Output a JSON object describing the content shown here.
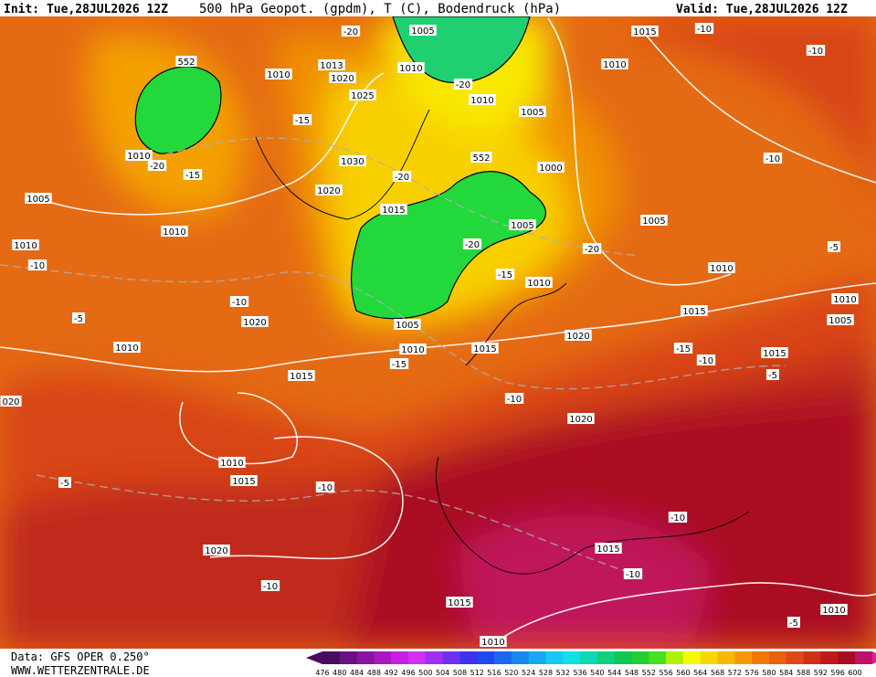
{
  "header": {
    "init": "Init: Tue,28JUL2026 12Z",
    "title": "500 hPa Geopot. (gpdm), T (C), Bodendruck (hPa)",
    "valid": "Valid: Tue,28JUL2026 12Z"
  },
  "map": {
    "labels": [
      "1005",
      "1010",
      "1013",
      "1020",
      "1010",
      "1025",
      "-15",
      "1010",
      "-20",
      "-15",
      "1030",
      "-20",
      "1020",
      "1005",
      "1015",
      "1010",
      "1010",
      "-10",
      "-10",
      "1020",
      "-5",
      "1010",
      "1005",
      "1010",
      "1015",
      "-15",
      "1015",
      "-10",
      "1020",
      "1010",
      "1015",
      "-5",
      "-10",
      "1020",
      "-10",
      "1015",
      "-10",
      "-10",
      "1015",
      "1010",
      "1010",
      "-5",
      "1015",
      "-10",
      "-10",
      "1010",
      "1005",
      "1000",
      "1005",
      "1005",
      "-20",
      "-20",
      "-15",
      "1010",
      "1010",
      "1015",
      "1020",
      "-15",
      "-10",
      "1015",
      "-5",
      "-10",
      "-5",
      "1010",
      "1005",
      "552",
      "552",
      "1010",
      "-20",
      "-20",
      "020"
    ]
  },
  "footer": {
    "source": "Data: GFS OPER 0.250°",
    "site": "WWW.WETTERZENTRALE.DE"
  },
  "scale": {
    "labels": [
      476,
      480,
      484,
      488,
      492,
      496,
      500,
      504,
      508,
      512,
      516,
      520,
      524,
      528,
      532,
      536,
      540,
      544,
      548,
      552,
      556,
      560,
      564,
      568,
      572,
      576,
      580,
      584,
      588,
      592,
      596,
      600
    ],
    "colors": [
      "#4a0c5c",
      "#6a1080",
      "#8a14a0",
      "#aa18c0",
      "#c81ee0",
      "#d030f0",
      "#a030f0",
      "#7030f0",
      "#4030f0",
      "#2048f0",
      "#1c68f0",
      "#1888f0",
      "#18a8f0",
      "#18c8f0",
      "#10e0e0",
      "#10d8b0",
      "#10d080",
      "#10c850",
      "#20d030",
      "#48e020",
      "#b0f000",
      "#f8f800",
      "#f8d800",
      "#f8b800",
      "#f89800",
      "#f07800",
      "#e86010",
      "#e04818",
      "#d03018",
      "#c01818",
      "#a80c20",
      "#c0106a"
    ]
  }
}
